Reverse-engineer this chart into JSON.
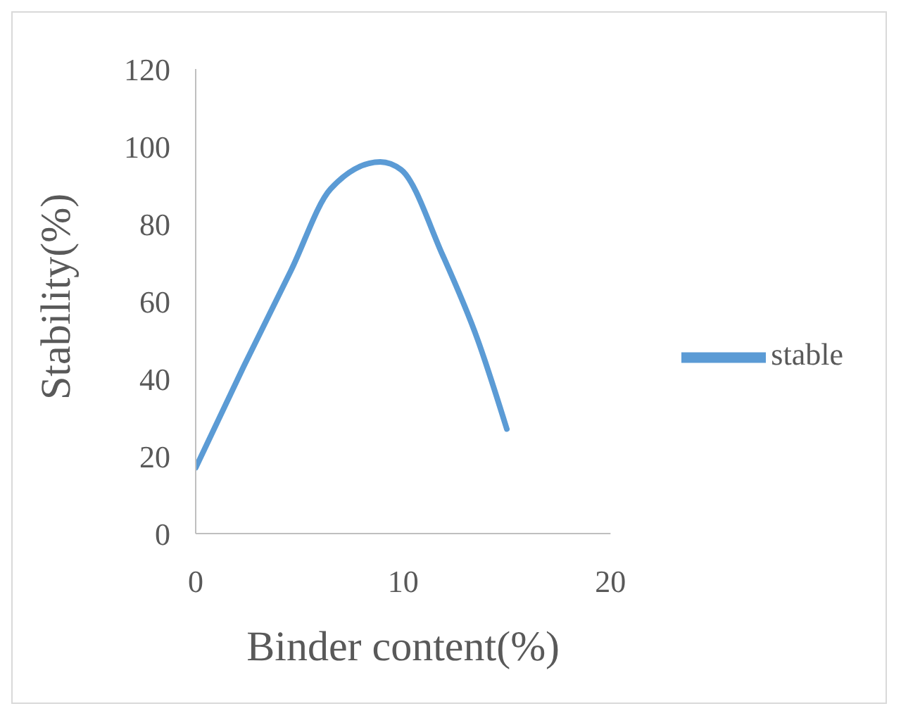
{
  "chart_data": {
    "type": "line",
    "xlabel": "Binder content(%)",
    "ylabel": "Stability(%)",
    "x": [
      0,
      2.3,
      4.6,
      6.5,
      8.9,
      9.9,
      11.9,
      13.6,
      15
    ],
    "series": [
      {
        "name": "stable",
        "color": "#5b9bd5",
        "values": [
          17,
          43,
          68,
          89,
          96,
          94,
          72,
          50,
          27
        ]
      }
    ],
    "xlim": [
      0,
      20
    ],
    "xticks": [
      0,
      10,
      20
    ],
    "ylim": [
      0,
      120
    ],
    "yticks": [
      0,
      20,
      40,
      60,
      80,
      100,
      120
    ],
    "grid": false,
    "legend": "right",
    "marker": "none",
    "line_style": "solid"
  }
}
